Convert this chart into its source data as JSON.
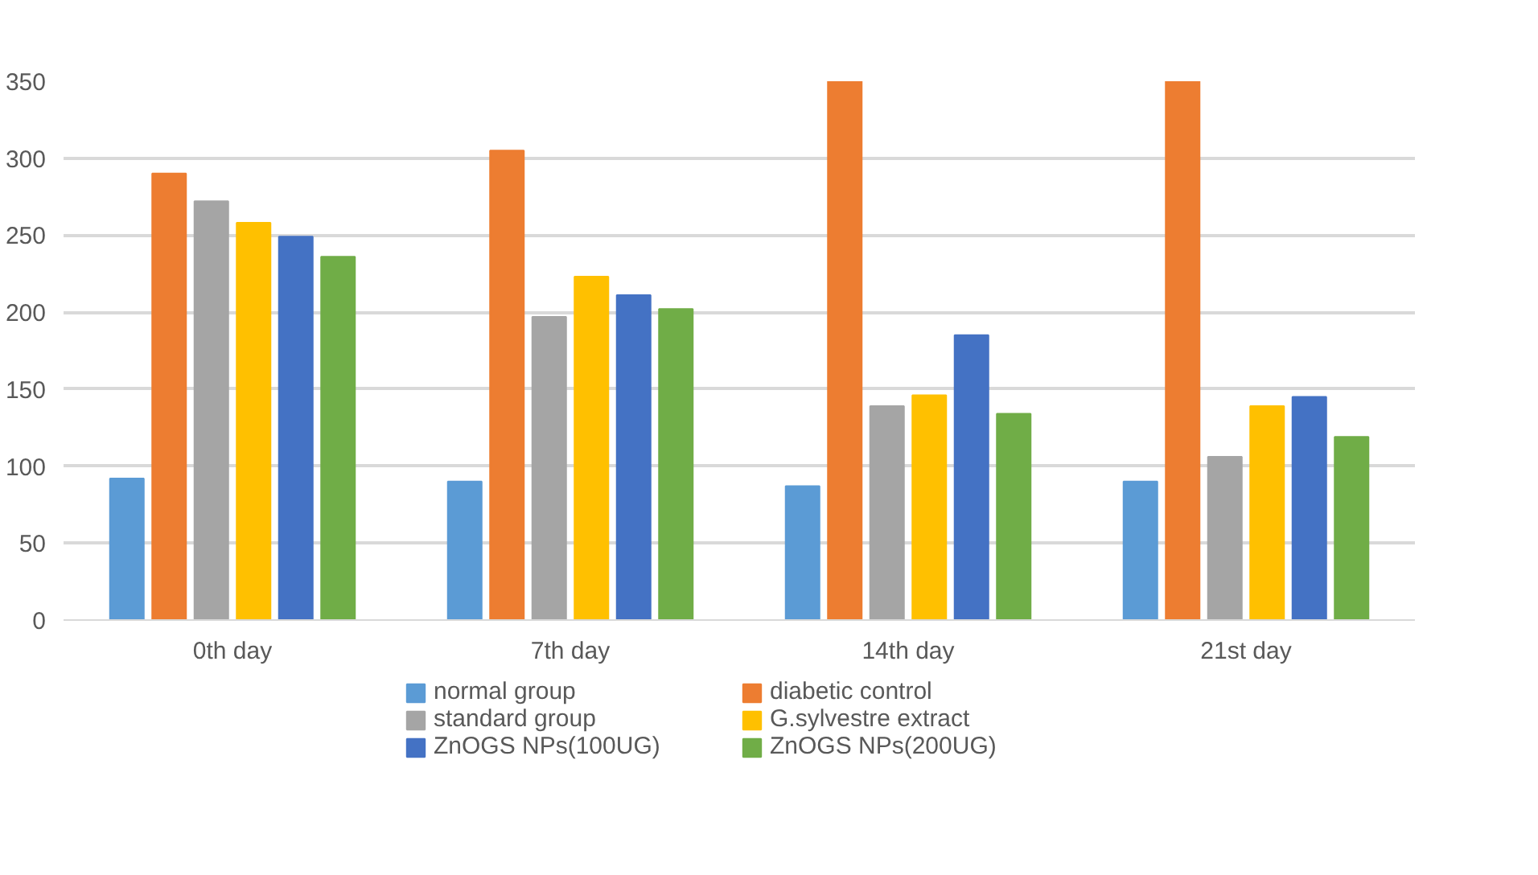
{
  "chart_data": {
    "type": "bar",
    "categories": [
      "0th day",
      "7th day",
      "14th day",
      "21st day"
    ],
    "series": [
      {
        "name": "normal group",
        "color": "#5b9bd5",
        "values": [
          92,
          90,
          87,
          90
        ]
      },
      {
        "name": "diabetic control",
        "color": "#ed7d31",
        "values": [
          290,
          305,
          350,
          350
        ]
      },
      {
        "name": "standard group",
        "color": "#a5a5a5",
        "values": [
          272,
          197,
          139,
          106
        ]
      },
      {
        "name": "G.sylvestre extract",
        "color": "#ffc000",
        "values": [
          258,
          223,
          146,
          139
        ]
      },
      {
        "name": "ZnOGS NPs(100UG)",
        "color": "#4472c4",
        "values": [
          249,
          211,
          185,
          145
        ]
      },
      {
        "name": "ZnOGS NPs(200UG)",
        "color": "#70ad47",
        "values": [
          236,
          202,
          134,
          119
        ]
      }
    ],
    "ylim": [
      0,
      350
    ],
    "yticks": [
      0,
      50,
      100,
      150,
      200,
      250,
      300,
      350
    ],
    "grid": "y",
    "legend": "bottom"
  }
}
